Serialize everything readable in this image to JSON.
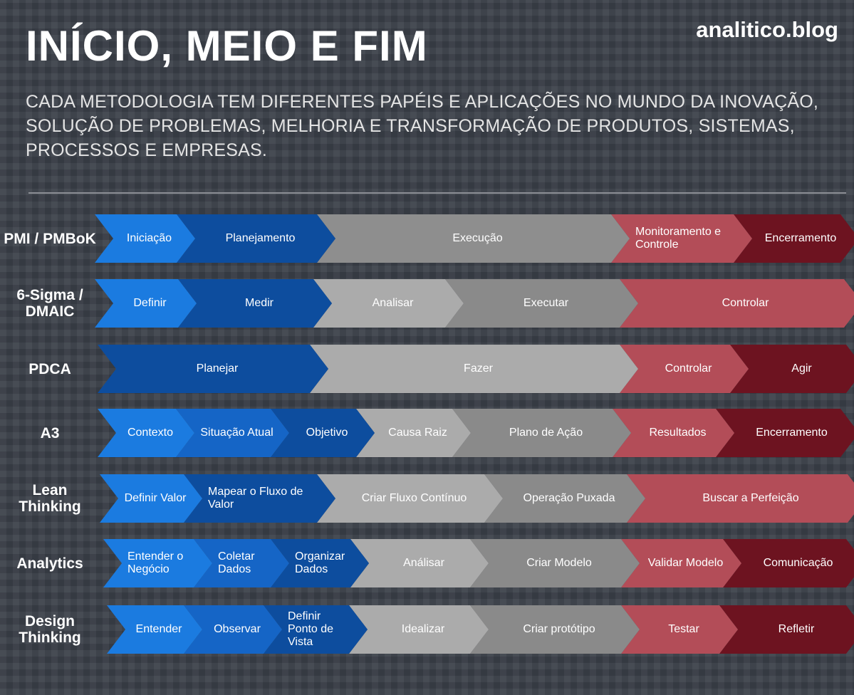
{
  "header": {
    "title": "INÍCIO, MEIO E FIM",
    "site": "analitico.blog",
    "subtitle": "CADA METODOLOGIA TEM DIFERENTES PAPÉIS E APLICAÇÕES NO MUNDO DA INOVAÇÃO, SOLUÇÃO DE PROBLEMAS, MELHORIA E TRANSFORMAÇÃO DE PRODUTOS, SISTEMAS, PROCESSOS E EMPRESAS."
  },
  "rows": [
    {
      "label": "PMI / PMBoK",
      "steps": [
        {
          "text": "Iniciação",
          "color": "#1b7be0"
        },
        {
          "text": "Planejamento",
          "color": "#0d4d9e"
        },
        {
          "text": "Execução",
          "color": "#8e8e8e"
        },
        {
          "text": "Monitoramento e Controle",
          "color": "#b34d58"
        },
        {
          "text": "Encerramento",
          "color": "#6d1320"
        }
      ]
    },
    {
      "label": "6-Sigma / DMAIC",
      "steps": [
        {
          "text": "Definir",
          "color": "#1b7be0"
        },
        {
          "text": "Medir",
          "color": "#0d4d9e"
        },
        {
          "text": "Analisar",
          "color": "#ababab"
        },
        {
          "text": "Executar",
          "color": "#8a8a8a"
        },
        {
          "text": "Controlar",
          "color": "#b34d58"
        }
      ]
    },
    {
      "label": "PDCA",
      "steps": [
        {
          "text": "Planejar",
          "color": "#0d4d9e"
        },
        {
          "text": "Fazer",
          "color": "#ababab"
        },
        {
          "text": "Controlar",
          "color": "#b34d58"
        },
        {
          "text": "Agir",
          "color": "#6d1320"
        }
      ]
    },
    {
      "label": "A3",
      "steps": [
        {
          "text": "Contexto",
          "color": "#1b7be0"
        },
        {
          "text": "Situação Atual",
          "color": "#1565c6"
        },
        {
          "text": "Objetivo",
          "color": "#0d4d9e"
        },
        {
          "text": "Causa Raiz",
          "color": "#ababab"
        },
        {
          "text": "Plano de Ação",
          "color": "#8a8a8a"
        },
        {
          "text": "Resultados",
          "color": "#b34d58"
        },
        {
          "text": "Encerramento",
          "color": "#6d1320"
        }
      ]
    },
    {
      "label": "Lean Thinking",
      "steps": [
        {
          "text": "Definir Valor",
          "color": "#1b7be0"
        },
        {
          "text": "Mapear o Fluxo de Valor",
          "color": "#0d4d9e"
        },
        {
          "text": "Criar Fluxo Contínuo",
          "color": "#ababab"
        },
        {
          "text": "Operação Puxada",
          "color": "#8a8a8a"
        },
        {
          "text": "Buscar a Perfeição",
          "color": "#b34d58"
        }
      ]
    },
    {
      "label": "Analytics",
      "steps": [
        {
          "text": "Entender o Negócio",
          "color": "#1b7be0"
        },
        {
          "text": "Coletar Dados",
          "color": "#1565c6"
        },
        {
          "text": "Organizar Dados",
          "color": "#0d4d9e"
        },
        {
          "text": "Análisar",
          "color": "#ababab"
        },
        {
          "text": "Criar Modelo",
          "color": "#8a8a8a"
        },
        {
          "text": "Validar Modelo",
          "color": "#b34d58"
        },
        {
          "text": "Comunicação",
          "color": "#6d1320"
        }
      ]
    },
    {
      "label": "Design Thinking",
      "steps": [
        {
          "text": "Entender",
          "color": "#1b7be0"
        },
        {
          "text": "Observar",
          "color": "#1565c6"
        },
        {
          "text": "Definir Ponto de Vista",
          "color": "#0d4d9e"
        },
        {
          "text": "Idealizar",
          "color": "#ababab"
        },
        {
          "text": "Criar protótipo",
          "color": "#8a8a8a"
        },
        {
          "text": "Testar",
          "color": "#b34d58"
        },
        {
          "text": "Refletir",
          "color": "#6d1320"
        }
      ]
    }
  ]
}
